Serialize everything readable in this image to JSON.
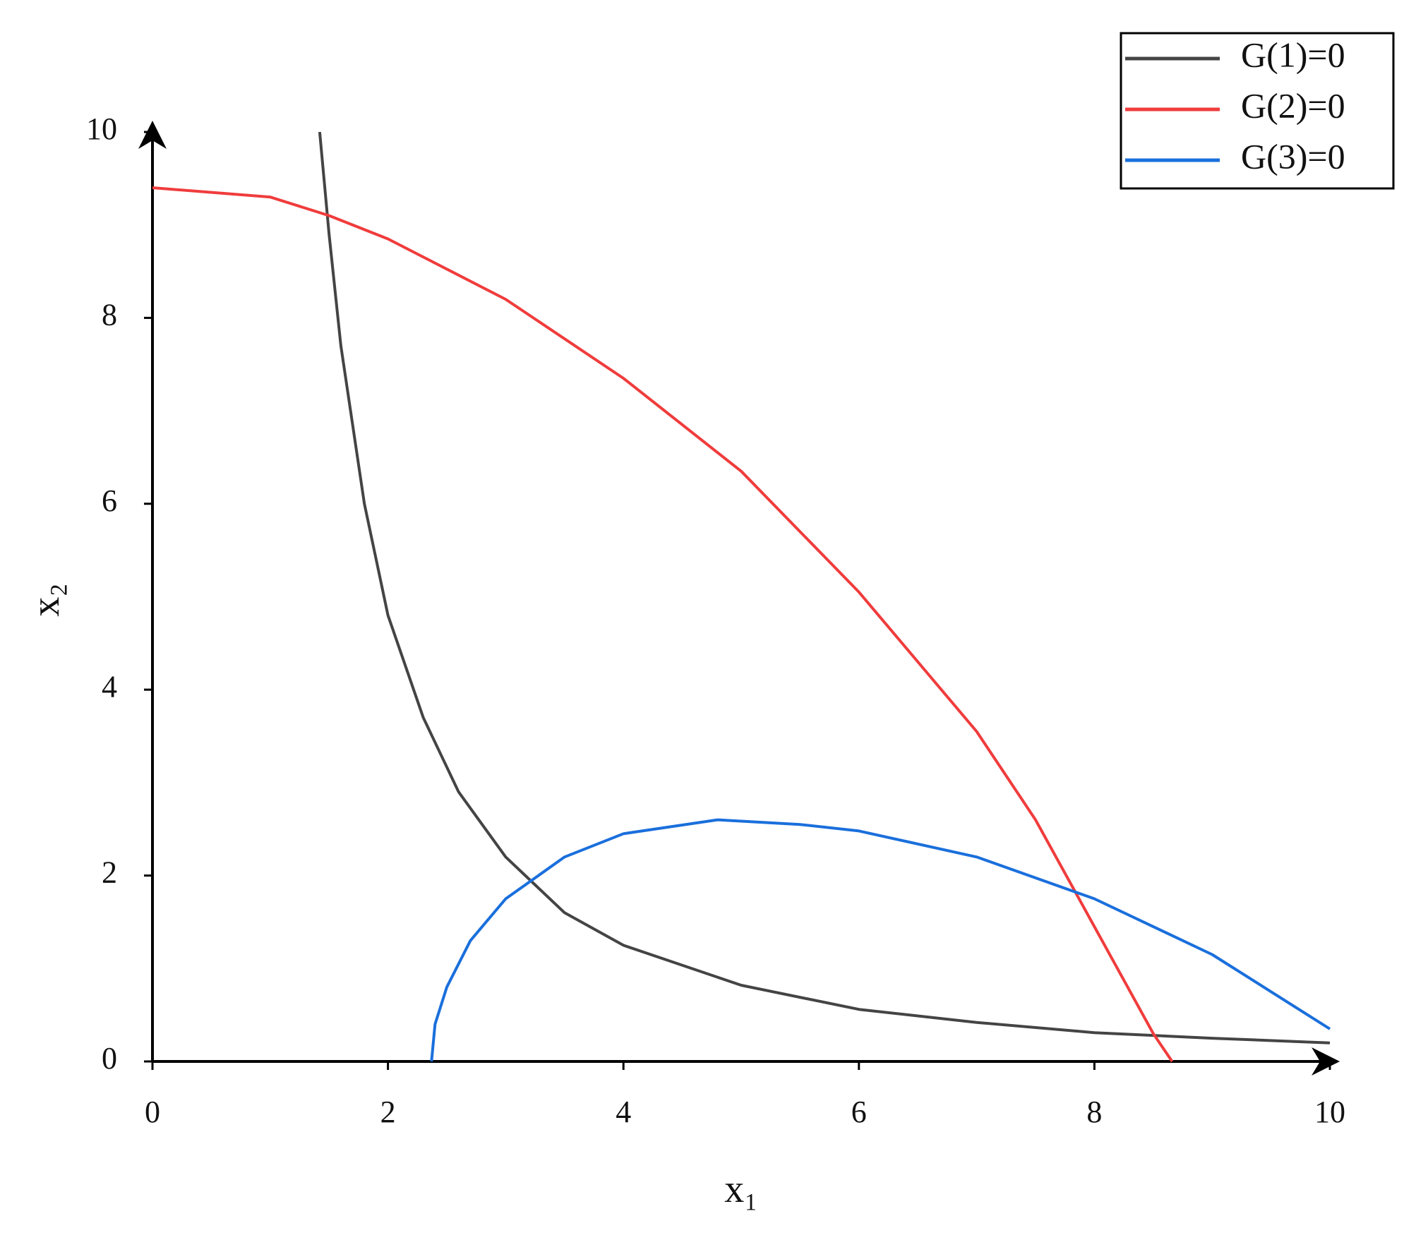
{
  "chart_data": {
    "type": "line",
    "xlabel": "x₁",
    "ylabel": "x₂",
    "xlim": [
      0,
      10
    ],
    "ylim": [
      0,
      10
    ],
    "xticks": [
      0,
      2,
      4,
      6,
      8,
      10
    ],
    "yticks": [
      0,
      2,
      4,
      6,
      8,
      10
    ],
    "legend": "top-right",
    "series": [
      {
        "name": "G(1)=0",
        "color": "#444444",
        "x": [
          1.42,
          1.5,
          1.6,
          1.8,
          2.0,
          2.3,
          2.6,
          3.0,
          3.5,
          4,
          5,
          6,
          7,
          8,
          9,
          10
        ],
        "values": [
          10,
          8.9,
          7.7,
          6.0,
          4.8,
          3.7,
          2.9,
          2.2,
          1.6,
          1.25,
          0.82,
          0.56,
          0.42,
          0.31,
          0.25,
          0.2
        ]
      },
      {
        "name": "G(2)=0",
        "color": "#f03c3c",
        "x": [
          0,
          1,
          1.5,
          2,
          3,
          4,
          5,
          6,
          7,
          7.5,
          8,
          8.5,
          8.66
        ],
        "values": [
          9.4,
          9.3,
          9.1,
          8.85,
          8.2,
          7.35,
          6.35,
          5.05,
          3.55,
          2.6,
          1.45,
          0.3,
          0
        ]
      },
      {
        "name": "G(3)=0",
        "color": "#1a6fdc",
        "x": [
          2.37,
          2.4,
          2.5,
          2.7,
          3,
          3.5,
          4,
          4.8,
          5.5,
          6,
          7,
          8,
          9,
          10
        ],
        "values": [
          0,
          0.4,
          0.8,
          1.3,
          1.75,
          2.2,
          2.45,
          2.6,
          2.55,
          2.48,
          2.2,
          1.75,
          1.15,
          0.35
        ]
      }
    ]
  }
}
